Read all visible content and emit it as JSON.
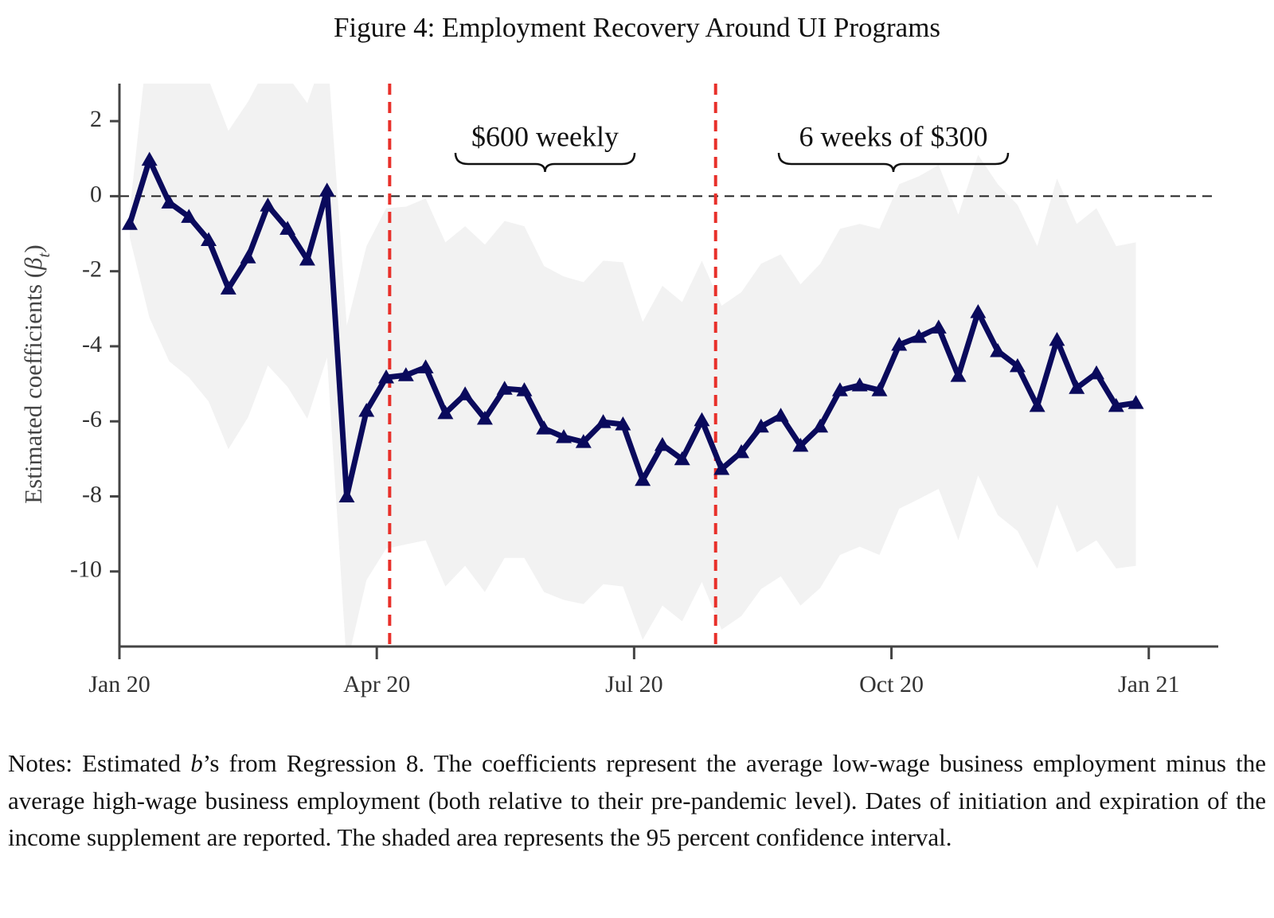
{
  "chart_data": {
    "type": "line",
    "title": "Figure 4: Employment Recovery Around UI Programs",
    "ylabel_parts": [
      "Estimated coefficients (",
      "β",
      "t",
      ")"
    ],
    "x": [
      0.12,
      0.35,
      0.58,
      0.81,
      1.04,
      1.27,
      1.5,
      1.73,
      1.96,
      2.19,
      2.42,
      2.65,
      2.88,
      3.11,
      3.34,
      3.57,
      3.8,
      4.03,
      4.26,
      4.49,
      4.72,
      4.95,
      5.18,
      5.41,
      5.64,
      5.87,
      6.1,
      6.33,
      6.56,
      6.79,
      7.02,
      7.25,
      7.48,
      7.71,
      7.94,
      8.17,
      8.4,
      8.63,
      8.86,
      9.09,
      9.32,
      9.55,
      9.78,
      10.01,
      10.24,
      10.47,
      10.7,
      10.93,
      11.16,
      11.39,
      11.62,
      11.85
    ],
    "values": [
      -0.74,
      0.97,
      -0.17,
      -0.55,
      -1.17,
      -2.46,
      -1.63,
      -0.25,
      -0.87,
      -1.69,
      0.15,
      -8.0,
      -5.72,
      -4.83,
      -4.77,
      -4.56,
      -5.78,
      -5.28,
      -5.93,
      -5.13,
      -5.17,
      -6.19,
      -6.42,
      -6.55,
      -6.02,
      -6.08,
      -7.56,
      -6.63,
      -7.01,
      -5.97,
      -7.27,
      -6.82,
      -6.14,
      -5.85,
      -6.65,
      -6.14,
      -5.17,
      -5.04,
      -5.17,
      -3.96,
      -3.75,
      -3.5,
      -4.79,
      -3.09,
      -4.13,
      -4.53,
      -5.59,
      -3.83,
      -5.11,
      -4.72,
      -5.59,
      -5.51
    ],
    "ci_upper": [
      -0.4,
      4.5,
      4.0,
      3.5,
      3.1,
      1.74,
      2.52,
      3.5,
      3.2,
      2.48,
      4.0,
      -3.45,
      -1.33,
      -0.32,
      -0.28,
      -0.06,
      -1.23,
      -0.8,
      -1.29,
      -0.66,
      -0.8,
      -1.86,
      -2.14,
      -2.29,
      -1.72,
      -1.76,
      -3.35,
      -2.39,
      -2.82,
      -1.72,
      -2.92,
      -2.56,
      -1.8,
      -1.55,
      -2.35,
      -1.8,
      -0.87,
      -0.74,
      -0.87,
      0.32,
      0.53,
      0.83,
      -0.49,
      1.1,
      0.32,
      -0.23,
      -1.33,
      0.47,
      -0.74,
      -0.32,
      -1.33,
      -1.23
    ],
    "ci_lower": [
      -1.1,
      -3.24,
      -4.4,
      -4.83,
      -5.47,
      -6.74,
      -5.89,
      -4.51,
      -5.08,
      -5.93,
      -4.3,
      -12.5,
      -10.23,
      -9.39,
      -9.28,
      -9.17,
      -10.4,
      -9.85,
      -10.55,
      -9.64,
      -9.64,
      -10.55,
      -10.76,
      -10.87,
      -10.34,
      -10.4,
      -11.82,
      -10.91,
      -11.33,
      -10.28,
      -11.55,
      -11.19,
      -10.47,
      -10.13,
      -10.91,
      -10.44,
      -9.56,
      -9.34,
      -9.56,
      -8.33,
      -8.07,
      -7.8,
      -9.17,
      -7.44,
      -8.5,
      -8.92,
      -9.92,
      -8.22,
      -9.49,
      -9.17,
      -9.92,
      -9.85
    ],
    "color": "#0a0a5c",
    "ci_color": "#f2f2f2",
    "xlim": [
      0,
      12.81
    ],
    "ylim": [
      -12,
      3
    ],
    "xticks": [
      {
        "value": 0,
        "label": "Jan 20"
      },
      {
        "value": 3,
        "label": "Apr 20"
      },
      {
        "value": 6,
        "label": "Jul 20"
      },
      {
        "value": 9,
        "label": "Oct 20"
      },
      {
        "value": 12,
        "label": "Jan 21"
      }
    ],
    "yticks": [
      -10,
      -8,
      -6,
      -4,
      -2,
      0,
      2
    ],
    "hline": 0,
    "vlines": [
      3.15,
      6.95
    ],
    "vline_color": "#e8302a",
    "annotations": [
      "$600 weekly",
      "6 weeks of $300"
    ]
  },
  "notes": [
    "Notes: Estimated ",
    "b",
    "’s from Regression 8. The coefficients represent the average low-wage business employment minus the average high-wage business employment (both relative to their pre-pandemic level). Dates of initiation and expiration of the income supplement are reported. The shaded area represents the 95 percent confidence interval."
  ]
}
